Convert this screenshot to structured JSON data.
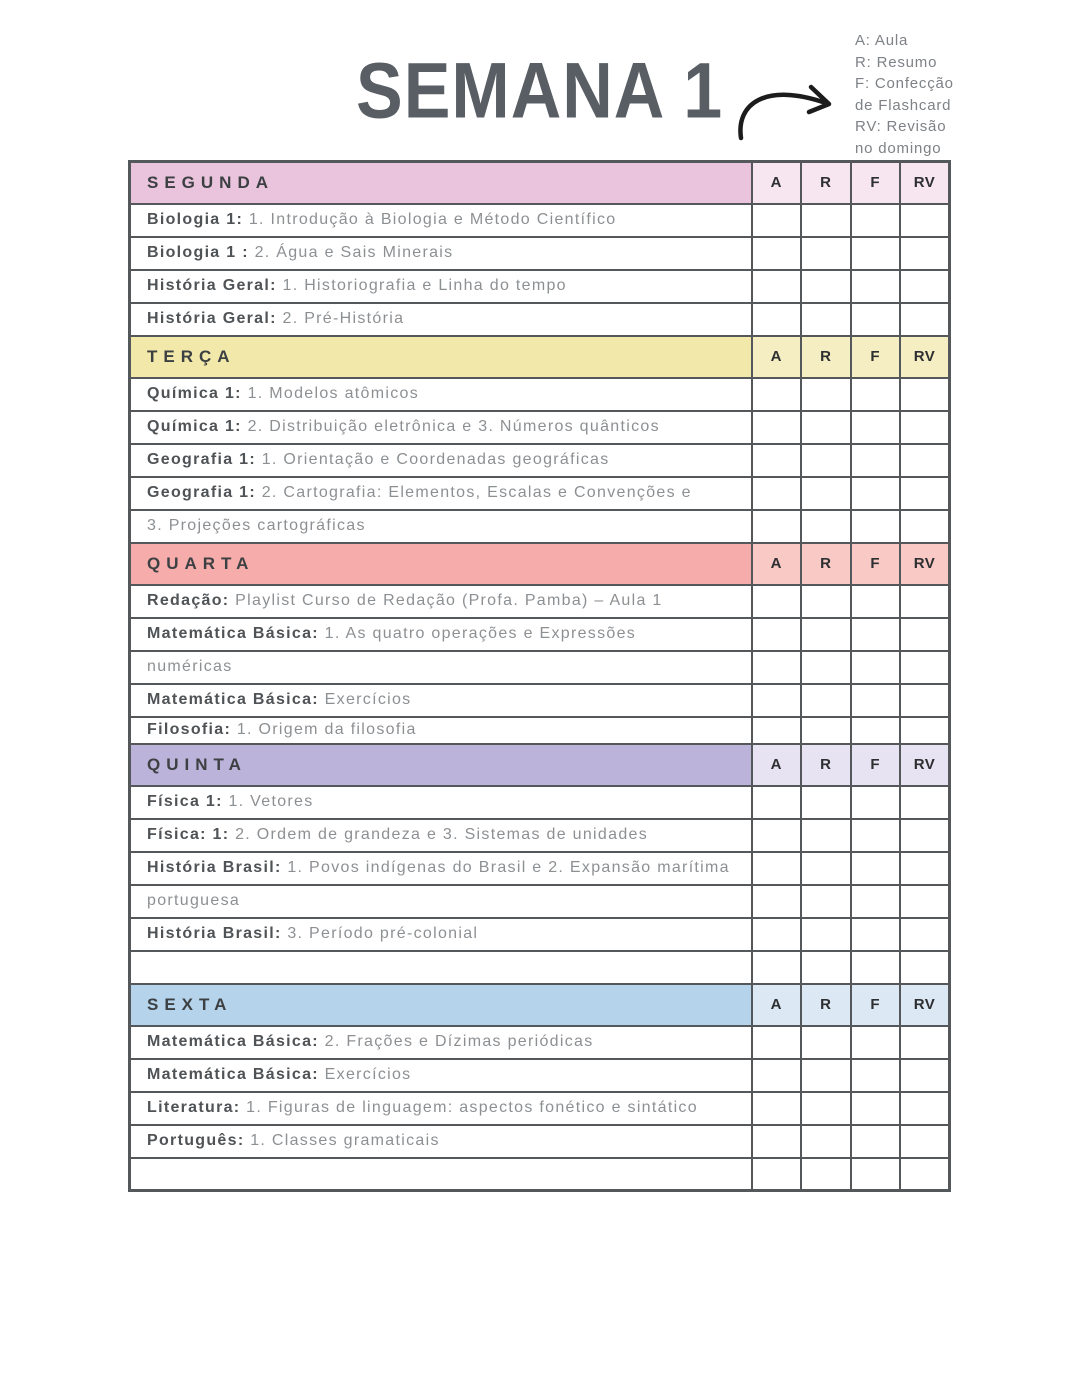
{
  "title": "SEMANA 1",
  "legend": {
    "lines": [
      "A: Aula",
      "R: Resumo",
      "F: Confecção",
      "de Flashcard",
      "RV: Revisão",
      "no domingo"
    ]
  },
  "columns": [
    "A",
    "R",
    "F",
    "RV"
  ],
  "colors": {
    "border": "#54585b",
    "title": "#585e63",
    "text_bold": "#4f5356",
    "text_light": "#8d9093",
    "legend_text": "#7e8286",
    "arrow": "#1c1c1c"
  },
  "sections": [
    {
      "day": "SEGUNDA",
      "day_color": "#e9c4dc",
      "cell_color": "#f7e6f0",
      "rows": [
        {
          "bold": "Biologia 1:",
          "rest": "1. Introdução à Biologia e Método Científico"
        },
        {
          "bold": "Biologia 1 :",
          "rest": "2. Água e Sais Minerais"
        },
        {
          "bold": "História Geral:",
          "rest": "1. Historiografia e Linha do tempo"
        },
        {
          "bold": "História Geral:",
          "rest": "2. Pré-História"
        }
      ]
    },
    {
      "day": "TERÇA",
      "day_color": "#f2e8a9",
      "cell_color": "#f6eec3",
      "rows": [
        {
          "bold": "Química 1:",
          "rest": "1. Modelos atômicos"
        },
        {
          "bold": "Química 1:",
          "rest": " 2. Distribuição eletrônica e 3. Números quânticos"
        },
        {
          "bold": "Geografia 1:",
          "rest": "1. Orientação e Coordenadas geográficas"
        },
        {
          "bold": "Geografia 1:",
          "rest": "2. Cartografia: Elementos, Escalas e Convenções e"
        },
        {
          "bold": "",
          "rest": "3. Projeções cartográficas"
        }
      ]
    },
    {
      "day": "QUARTA",
      "day_color": "#f5acaa",
      "cell_color": "#f8c9c5",
      "rows": [
        {
          "bold": "Redação:",
          "rest": "Playlist Curso de Redação (Profa. Pamba) – Aula 1"
        },
        {
          "bold": "Matemática Básica:",
          "rest": "1. As quatro operações e Expressões"
        },
        {
          "bold": "",
          "rest": "numéricas"
        },
        {
          "bold": "Matemática Básica:",
          "rest": " Exercícios"
        },
        {
          "bold": "Filosofia:",
          "rest": " 1. Origem da filosofia",
          "compact": true
        }
      ]
    },
    {
      "day": "QUINTA",
      "day_color": "#bcb3da",
      "cell_color": "#e7e3f2",
      "rows": [
        {
          "bold": "Física 1:",
          "rest": " 1. Vetores"
        },
        {
          "bold": "Física: 1:",
          "rest": "2. Ordem de grandeza e  3. Sistemas de unidades"
        },
        {
          "bold": "História Brasil:",
          "rest": " 1. Povos indígenas do Brasil e 2. Expansão marítima"
        },
        {
          "bold": "",
          "rest": "portuguesa"
        },
        {
          "bold": "História Brasil:",
          "rest": " 3. Período pré-colonial"
        },
        {
          "bold": "",
          "rest": ""
        }
      ]
    },
    {
      "day": "SEXTA",
      "day_color": "#b5d4ec",
      "cell_color": "#dce8f4",
      "rows": [
        {
          "bold": "Matemática Básica:",
          "rest": "  2. Frações e Dízimas periódicas"
        },
        {
          "bold": "Matemática Básica:",
          "rest": " Exercícios"
        },
        {
          "bold": "Literatura:",
          "rest": "1. Figuras de linguagem: aspectos fonético e sintático"
        },
        {
          "bold": "Português:",
          "rest": " 1. Classes gramaticais"
        },
        {
          "bold": "",
          "rest": ""
        }
      ]
    }
  ]
}
